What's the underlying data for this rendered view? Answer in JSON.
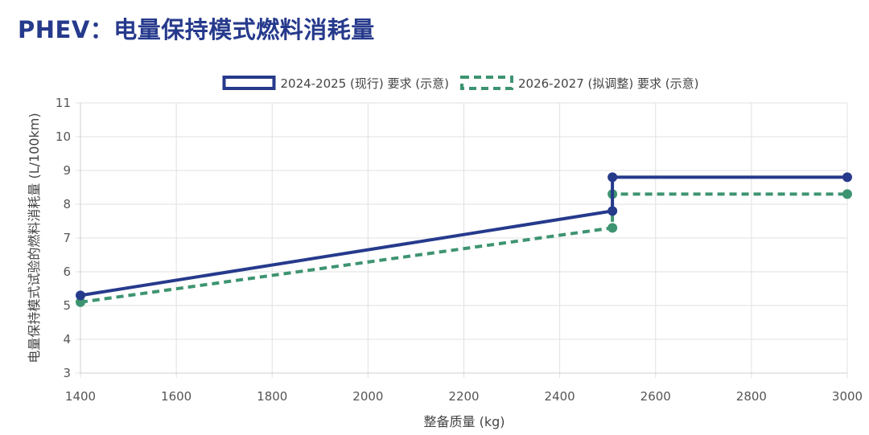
{
  "page": {
    "title": "PHEV：电量保持模式燃料消耗量"
  },
  "chart_data": {
    "type": "line",
    "title": "PHEV：电量保持模式燃料消耗量",
    "xlabel": "整备质量 (kg)",
    "ylabel": "电量保持模式试验的燃料消耗量 (L/100km)",
    "xlim": [
      1400,
      3000
    ],
    "ylim": [
      3,
      11
    ],
    "x_ticks": [
      1400,
      1600,
      1800,
      2000,
      2200,
      2400,
      2600,
      2800,
      3000
    ],
    "y_ticks": [
      3,
      4,
      5,
      6,
      7,
      8,
      9,
      10,
      11
    ],
    "grid": true,
    "legend_position": "top-center",
    "series": [
      {
        "name": "2024-2025 (现行) 要求 (示意)",
        "color": "#263a8c",
        "line_style": "solid",
        "points": [
          {
            "x": 1400,
            "y": 5.3
          },
          {
            "x": 2510,
            "y": 7.8
          },
          {
            "x": 2510,
            "y": 8.8
          },
          {
            "x": 3000,
            "y": 8.8
          }
        ]
      },
      {
        "name": "2026-2027 (拟调整) 要求 (示意)",
        "color": "#3d9470",
        "line_style": "dashed",
        "points": [
          {
            "x": 1400,
            "y": 5.1
          },
          {
            "x": 2510,
            "y": 7.3
          },
          {
            "x": 2510,
            "y": 8.3
          },
          {
            "x": 3000,
            "y": 8.3
          }
        ]
      }
    ]
  }
}
